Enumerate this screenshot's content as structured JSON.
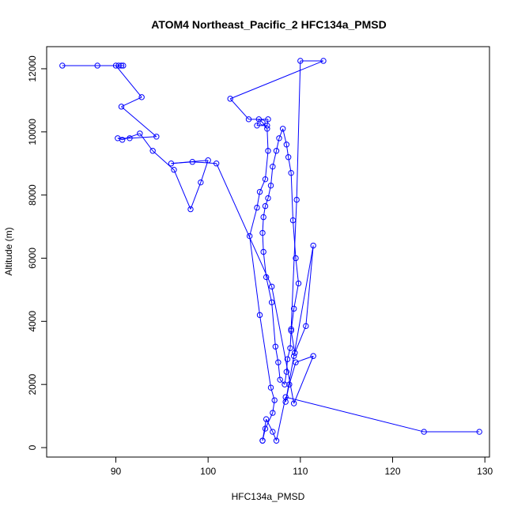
{
  "chart_data": {
    "type": "line",
    "title": "ATOM4 Northeast_Pacific_2 HFC134a_PMSD",
    "xlabel": "HFC134a_PMSD",
    "ylabel": "Altitude (m)",
    "xlim": [
      82.5,
      130.5
    ],
    "ylim": [
      -300,
      12700
    ],
    "x_ticks": [
      90,
      100,
      110,
      120,
      130
    ],
    "y_ticks": [
      0,
      2000,
      4000,
      6000,
      8000,
      10000,
      12000
    ],
    "grid": false,
    "line_color": "#0000ff",
    "marker": "open-circle",
    "series": [
      {
        "x": [
          129.4,
          123.4,
          108.4,
          107.4,
          107.0,
          106.3,
          105.9,
          105.9,
          106.2,
          107.0,
          107.2,
          106.8,
          105.6,
          104.5,
          105.3,
          105.6,
          106.2,
          106.5,
          106.4,
          105.9,
          105.5,
          105.3,
          106.4,
          106.5,
          104.4,
          102.4,
          112.5,
          110.0,
          109.6,
          109.0,
          108.9,
          108.6,
          108.5,
          108.3,
          107.8,
          107.6,
          107.3,
          106.9,
          106.3,
          106.0,
          105.9,
          106.0,
          106.2,
          106.5,
          106.8,
          107.0,
          107.4,
          107.7,
          108.1,
          108.5,
          108.7,
          109.0,
          109.2,
          109.5,
          109.8,
          109.3,
          109.0,
          109.4,
          110.6,
          111.4,
          109.3,
          108.4,
          108.8,
          109.5,
          111.4,
          109.3,
          106.9,
          100.9,
          98.3,
          96.0,
          100.0,
          99.2,
          98.1,
          96.3,
          94.0,
          92.6,
          90.7,
          90.2,
          91.5,
          94.4,
          90.6,
          92.8,
          90.0,
          84.2,
          88.0,
          90.3,
          90.6,
          90.8
        ],
        "y": [
          500,
          500,
          1600,
          220,
          500,
          900,
          220,
          220,
          600,
          1100,
          1500,
          1900,
          4200,
          6700,
          7600,
          8100,
          8500,
          9400,
          10100,
          10300,
          10400,
          10200,
          10200,
          10400,
          10400,
          11050,
          12250,
          12250,
          7850,
          3750,
          3150,
          2800,
          2400,
          2000,
          2150,
          2700,
          3200,
          4600,
          5400,
          6200,
          6800,
          7300,
          7650,
          7900,
          8300,
          8900,
          9400,
          9800,
          10100,
          9600,
          9200,
          8700,
          7200,
          6000,
          5200,
          4400,
          3700,
          3000,
          3850,
          6400,
          2900,
          1450,
          2000,
          2700,
          2900,
          1400,
          5100,
          9000,
          9050,
          9000,
          9100,
          8400,
          7550,
          8800,
          9400,
          9950,
          9750,
          9800,
          9800,
          9850,
          10800,
          11100,
          12100,
          12100,
          12100,
          12100,
          12100,
          12100
        ]
      }
    ]
  }
}
